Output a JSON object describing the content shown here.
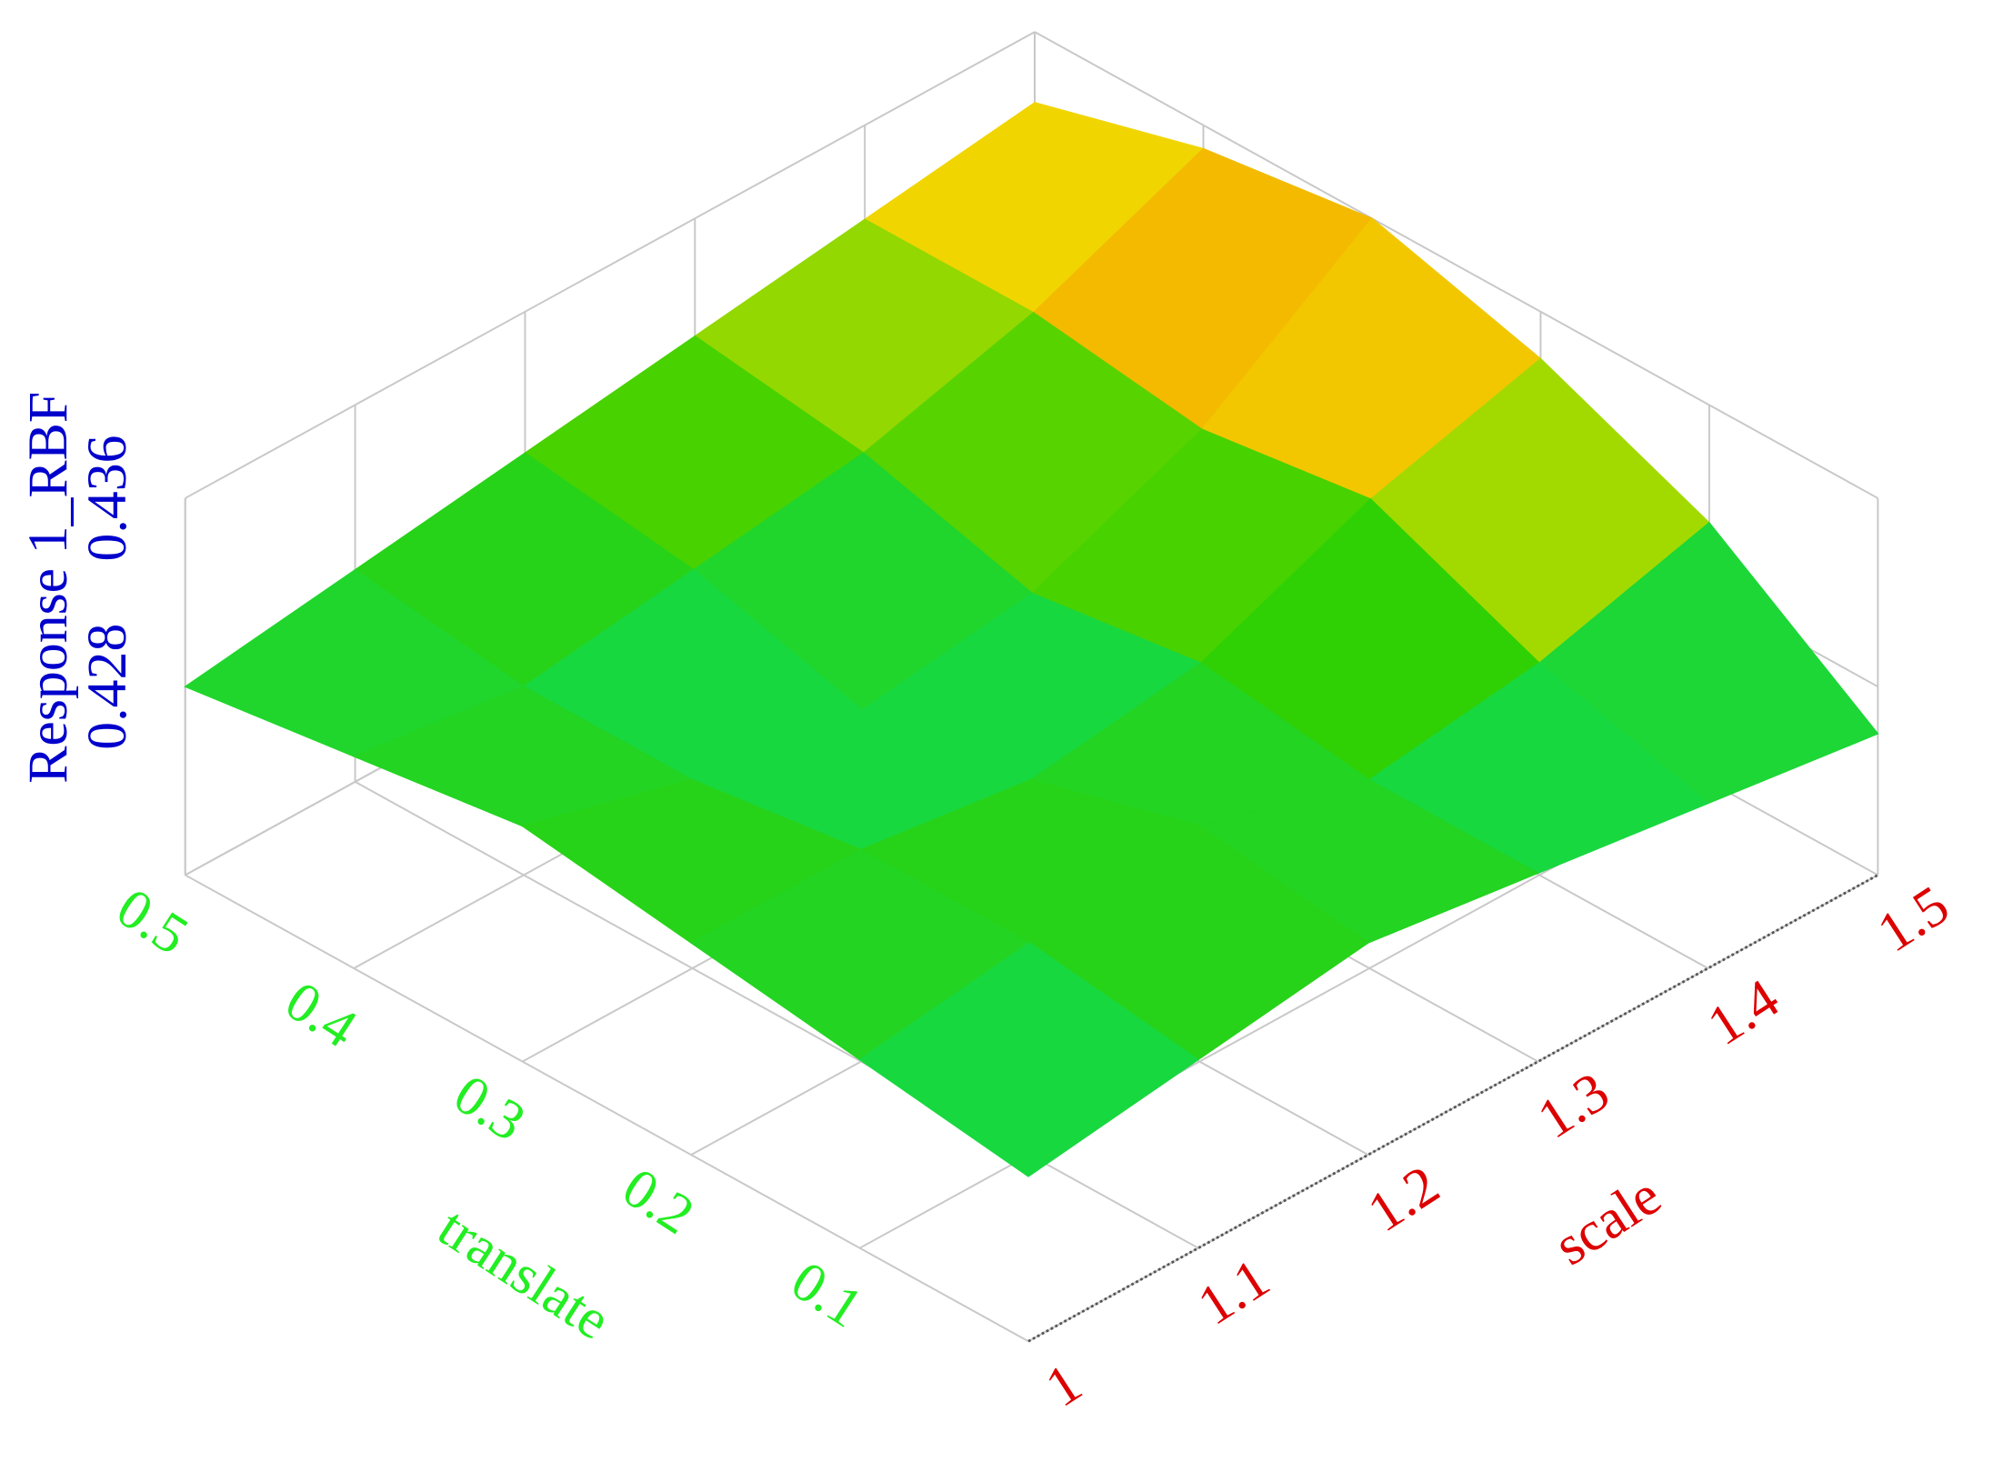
{
  "chart_data": {
    "type": "surface",
    "x_label": "scale",
    "y_label": "translate",
    "z_label": "Response 1_RBF",
    "x": [
      1.0,
      1.1,
      1.2,
      1.3,
      1.4,
      1.5
    ],
    "y": [
      0.0,
      0.1,
      0.2,
      0.3,
      0.4,
      0.5
    ],
    "z": [
      [
        0.427,
        0.428,
        0.429,
        0.428,
        0.427,
        0.426
      ],
      [
        0.428,
        0.429,
        0.43,
        0.428,
        0.429,
        0.431
      ],
      [
        0.429,
        0.429,
        0.428,
        0.429,
        0.432,
        0.434
      ],
      [
        0.43,
        0.428,
        0.427,
        0.428,
        0.431,
        0.436
      ],
      [
        0.429,
        0.428,
        0.429,
        0.43,
        0.432,
        0.435
      ],
      [
        0.428,
        0.429,
        0.43,
        0.431,
        0.432,
        0.433
      ]
    ],
    "xlim": [
      1.0,
      1.5
    ],
    "xticks": [
      1.0,
      1.1,
      1.2,
      1.3,
      1.4,
      1.5
    ],
    "ylim": [
      0.0,
      0.5
    ],
    "yticks": [
      0.1,
      0.2,
      0.3,
      0.4,
      0.5
    ],
    "zlim": [
      0.42,
      0.436
    ],
    "zticks": [
      0.428,
      0.436
    ],
    "colors": [
      "#0010a0",
      "#00a0d0",
      "#00e080",
      "#30d000",
      "#f0e000",
      "#ff3000"
    ],
    "x_color": "#dd0000",
    "y_color": "#22ee22",
    "z_color": "#0000cc"
  }
}
